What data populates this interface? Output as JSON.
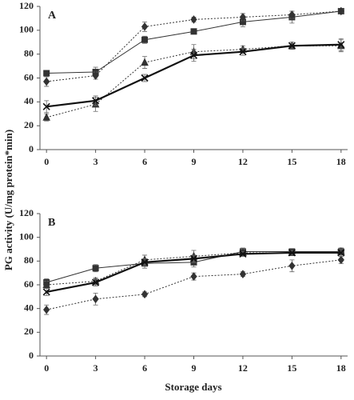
{
  "chart_data": [
    {
      "type": "line",
      "title": "A",
      "ylabel": "PG activity (U/mg protein*min)",
      "x": [
        0,
        3,
        6,
        9,
        12,
        15,
        18
      ],
      "xlim": [
        -0.4,
        18.4
      ],
      "xticks": [
        0,
        3,
        6,
        9,
        12,
        15,
        18
      ],
      "ylim": [
        0,
        120
      ],
      "yticks": [
        0,
        20,
        40,
        60,
        80,
        100,
        120
      ],
      "series": [
        {
          "color": "#333333",
          "marker": "square",
          "line": "solid",
          "values": [
            64,
            65,
            92,
            99,
            107,
            111,
            116
          ],
          "errors": [
            2,
            4,
            3,
            2,
            4,
            5,
            2
          ]
        },
        {
          "color": "#333333",
          "marker": "diamond",
          "line": "dotted",
          "values": [
            57,
            62,
            103,
            109,
            111,
            113,
            116
          ],
          "errors": [
            4,
            3,
            4,
            2,
            3,
            3,
            2
          ]
        },
        {
          "color": "#333333",
          "marker": "triangle",
          "line": "dotted",
          "values": [
            27,
            38,
            73,
            82,
            84,
            87,
            87
          ],
          "errors": [
            3,
            6,
            5,
            6,
            3,
            3,
            5
          ]
        },
        {
          "color": "#111111",
          "marker": "x",
          "line": "thick",
          "values": [
            36,
            41,
            60,
            79,
            82,
            87,
            88
          ],
          "errors": [
            5,
            4,
            3,
            5,
            3,
            2,
            5
          ]
        }
      ]
    },
    {
      "type": "line",
      "title": "B",
      "xlabel": "Storage days",
      "x": [
        0,
        3,
        6,
        9,
        12,
        15,
        18
      ],
      "xlim": [
        -0.4,
        18.4
      ],
      "xticks": [
        0,
        3,
        6,
        9,
        12,
        15,
        18
      ],
      "ylim": [
        0,
        120
      ],
      "yticks": [
        0,
        20,
        40,
        60,
        80,
        100,
        120
      ],
      "series": [
        {
          "color": "#333333",
          "marker": "square",
          "line": "solid",
          "values": [
            62,
            74,
            78,
            79,
            88,
            88,
            88
          ],
          "errors": [
            3,
            3,
            4,
            4,
            3,
            2,
            3
          ]
        },
        {
          "color": "#333333",
          "marker": "diamond",
          "line": "dotted",
          "values": [
            39,
            48,
            52,
            67,
            69,
            76,
            81
          ],
          "errors": [
            4,
            5,
            2,
            3,
            2,
            5,
            3
          ]
        },
        {
          "color": "#333333",
          "marker": "triangle",
          "line": "dotted",
          "values": [
            60,
            63,
            81,
            84,
            87,
            87,
            88
          ],
          "errors": [
            3,
            3,
            4,
            5,
            3,
            2,
            3
          ]
        },
        {
          "color": "#111111",
          "marker": "x",
          "line": "thick",
          "values": [
            54,
            62,
            79,
            82,
            86,
            87,
            87
          ],
          "errors": [
            3,
            3,
            3,
            3,
            2,
            2,
            3
          ]
        }
      ]
    }
  ]
}
